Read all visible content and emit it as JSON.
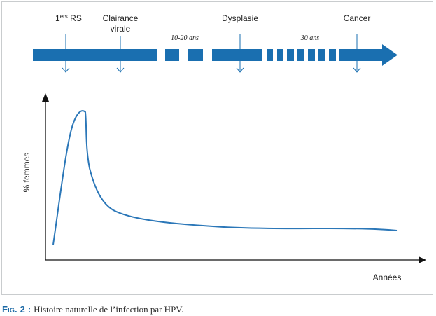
{
  "timeline": {
    "events": [
      {
        "label_main": "1",
        "label_sup": "ers",
        "label_rest": " RS"
      },
      {
        "label_line1": "Clairance",
        "label_line2": "virale"
      },
      {
        "label": "Dysplasie"
      },
      {
        "label": "Cancer"
      }
    ],
    "durations": [
      "10-20 ans",
      "30 ans"
    ]
  },
  "graph": {
    "y_label": "% femmes",
    "x_label": "Années"
  },
  "caption": {
    "fig_label": "Fig. 2 :",
    "text": "Histoire naturelle de l’infection par HPV."
  },
  "colors": {
    "blue": "#1a6fb0",
    "curve": "#2b77b8",
    "axis": "#111111",
    "frame": "#c9ccce"
  },
  "icons": [
    "arrow-right-icon",
    "arrow-down-icon",
    "arrow-up-icon"
  ]
}
